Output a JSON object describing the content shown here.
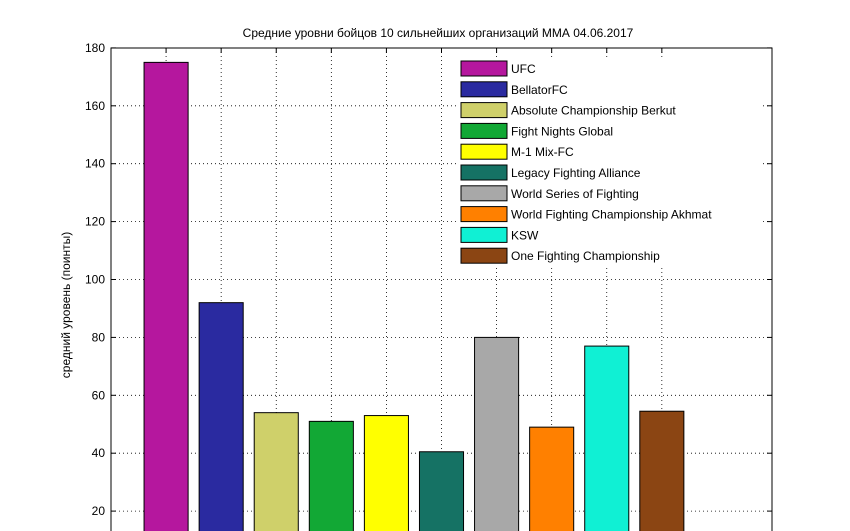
{
  "chart_data": {
    "type": "bar",
    "title": "Средние уровни бойцов 10 сильнейших организаций ММА 04.06.2017",
    "xlabel": "",
    "ylabel": "средний уровень (поинты)",
    "ylim": [
      0,
      180
    ],
    "yticks": [
      20,
      40,
      60,
      80,
      100,
      120,
      140,
      160,
      180
    ],
    "grid": true,
    "legend_position": "top-right",
    "series": [
      {
        "name": "UFC",
        "value": 175,
        "color": "#b5179e"
      },
      {
        "name": "BellatorFC",
        "value": 92,
        "color": "#2a2aa0"
      },
      {
        "name": "Absolute Championship Berkut",
        "value": 54,
        "color": "#cfd06a"
      },
      {
        "name": "Fight Nights Global",
        "value": 51,
        "color": "#12a835"
      },
      {
        "name": "M-1 Mix-FC",
        "value": 53,
        "color": "#ffff00"
      },
      {
        "name": "Legacy Fighting Alliance",
        "value": 40.5,
        "color": "#157264"
      },
      {
        "name": "World Series of Fighting",
        "value": 80,
        "color": "#a8a8a8"
      },
      {
        "name": "World Fighting Championship Akhmat",
        "value": 49,
        "color": "#ff8000"
      },
      {
        "name": "KSW",
        "value": 77,
        "color": "#10f0d4"
      },
      {
        "name": "One Fighting Championship",
        "value": 54.5,
        "color": "#8b4513"
      }
    ]
  }
}
